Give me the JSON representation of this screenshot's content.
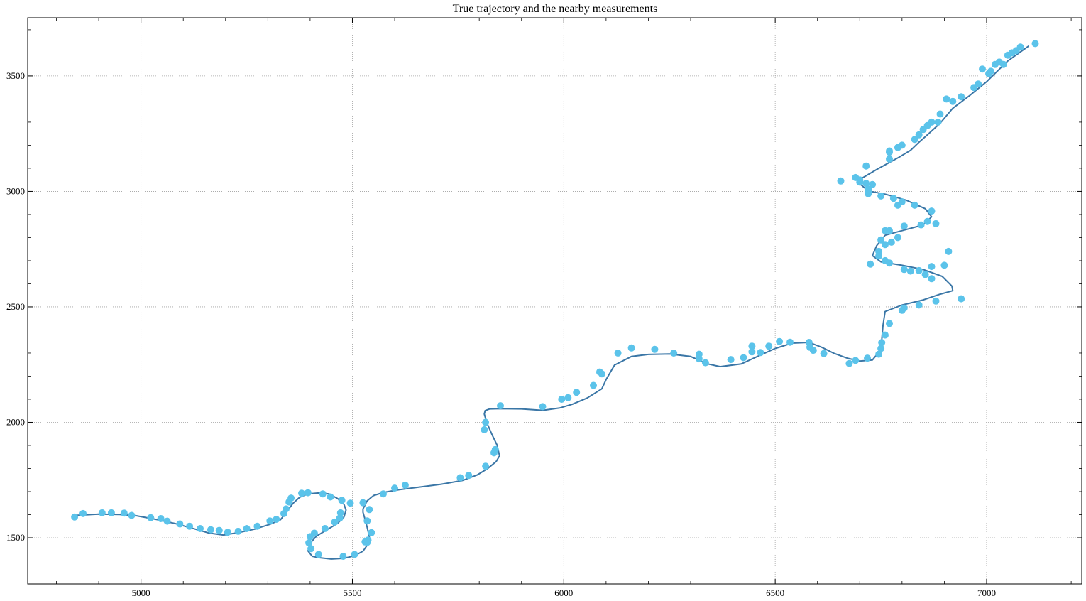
{
  "chart_data": {
    "type": "line+scatter",
    "title": "True trajectory and the nearby measurements",
    "xlabel": "",
    "ylabel": "",
    "xlim": [
      4732,
      7225
    ],
    "ylim": [
      1300,
      3752
    ],
    "xticks": [
      5000,
      5500,
      6000,
      6500,
      7000
    ],
    "yticks": [
      1500,
      2000,
      2500,
      3000,
      3500
    ],
    "grid": true,
    "colors": {
      "line": "#3a76a6",
      "points": "#5bc3ea",
      "grid": "#a0a0a0"
    },
    "series": [
      {
        "kind": "line",
        "x": [
          4843,
          4900,
          4950,
          4990,
          5040,
          5080,
          5120,
          5160,
          5195,
          5230,
          5270,
          5305,
          5330,
          5340,
          5350,
          5360,
          5375,
          5395,
          5420,
          5445,
          5465,
          5480,
          5485,
          5480,
          5465,
          5440,
          5415,
          5400,
          5395,
          5405,
          5420,
          5450,
          5480,
          5505,
          5525,
          5535,
          5540,
          5535,
          5530,
          5525,
          5525,
          5535,
          5550,
          5575,
          5610,
          5660,
          5710,
          5760,
          5795,
          5820,
          5840,
          5848,
          5842,
          5830,
          5818,
          5812,
          5814,
          5825,
          5850,
          5900,
          5950,
          5990,
          6020,
          6055,
          6090,
          6100,
          6120,
          6160,
          6200,
          6250,
          6300,
          6340,
          6370,
          6420,
          6460,
          6500,
          6540,
          6580,
          6610,
          6640,
          6670,
          6700,
          6730,
          6748,
          6752,
          6755,
          6760,
          6800,
          6850,
          6890,
          6920,
          6918,
          6895,
          6850,
          6800,
          6750,
          6730,
          6740,
          6760,
          6800,
          6850,
          6870,
          6855,
          6810,
          6760,
          6720,
          6700,
          6705,
          6740,
          6790,
          6820,
          6840,
          6860,
          6890,
          6920,
          6960,
          7000,
          7050,
          7100
        ],
        "y": [
          1597,
          1602,
          1601,
          1595,
          1578,
          1562,
          1542,
          1521,
          1512,
          1522,
          1538,
          1558,
          1578,
          1602,
          1626,
          1650,
          1675,
          1690,
          1694,
          1690,
          1670,
          1645,
          1620,
          1590,
          1562,
          1535,
          1507,
          1476,
          1443,
          1420,
          1414,
          1408,
          1411,
          1422,
          1442,
          1468,
          1505,
          1545,
          1580,
          1610,
          1625,
          1660,
          1683,
          1697,
          1708,
          1720,
          1732,
          1748,
          1772,
          1800,
          1830,
          1855,
          1902,
          1948,
          1998,
          2036,
          2051,
          2058,
          2059,
          2058,
          2052,
          2062,
          2078,
          2105,
          2145,
          2185,
          2248,
          2285,
          2294,
          2296,
          2285,
          2253,
          2241,
          2253,
          2287,
          2320,
          2343,
          2346,
          2325,
          2298,
          2278,
          2265,
          2270,
          2310,
          2355,
          2420,
          2480,
          2508,
          2530,
          2555,
          2570,
          2590,
          2632,
          2662,
          2680,
          2695,
          2722,
          2765,
          2810,
          2830,
          2855,
          2890,
          2925,
          2962,
          2988,
          3002,
          3033,
          3057,
          3095,
          3145,
          3178,
          3213,
          3245,
          3295,
          3360,
          3415,
          3475,
          3565,
          3630
        ]
      },
      {
        "kind": "scatter",
        "x": [
          4843,
          4863,
          4908,
          4930,
          4960,
          4978,
          5023,
          5047,
          5062,
          5092,
          5115,
          5140,
          5165,
          5185,
          5205,
          5230,
          5250,
          5275,
          5305,
          5320,
          5338,
          5343,
          5350,
          5355,
          5380,
          5395,
          5430,
          5448,
          5475,
          5472,
          5470,
          5458,
          5435,
          5410,
          5400,
          5397,
          5402,
          5420,
          5478,
          5505,
          5535,
          5537,
          5535,
          5540,
          5545,
          5525,
          5530,
          5495,
          5573,
          5600,
          5625,
          5755,
          5775,
          5815,
          5838,
          5835,
          5812,
          5815,
          5850,
          5950,
          5995,
          6010,
          6030,
          6070,
          6085,
          6090,
          6128,
          6160,
          6215,
          6260,
          6320,
          6320,
          6335,
          6395,
          6425,
          6445,
          6445,
          6465,
          6485,
          6510,
          6535,
          6580,
          6582,
          6590,
          6615,
          6675,
          6690,
          6718,
          6745,
          6750,
          6752,
          6760,
          6770,
          6800,
          6805,
          6840,
          6880,
          6940,
          6870,
          6855,
          6840,
          6805,
          6820,
          6870,
          6900,
          6910,
          6880,
          6860,
          6845,
          6805,
          6790,
          6750,
          6760,
          6770,
          6790,
          6775,
          6760,
          6745,
          6745,
          6760,
          6770,
          6725,
          6720,
          6750,
          6780,
          6800,
          6830,
          6870,
          6770,
          6690,
          6700,
          6715,
          6720,
          6730,
          6715,
          6655,
          6700,
          6720,
          6770,
          6770,
          6790,
          6800,
          6830,
          6840,
          6850,
          6860,
          6870,
          6885,
          6890,
          6905,
          6920,
          6940,
          6970,
          6980,
          6990,
          7005,
          7010,
          7020,
          7030,
          7040,
          7050,
          7060,
          7070,
          7080,
          7115
        ],
        "y": [
          1590,
          1605,
          1608,
          1608,
          1607,
          1597,
          1587,
          1583,
          1572,
          1560,
          1550,
          1540,
          1535,
          1532,
          1524,
          1528,
          1540,
          1550,
          1573,
          1580,
          1605,
          1625,
          1655,
          1672,
          1693,
          1695,
          1690,
          1677,
          1662,
          1608,
          1585,
          1568,
          1540,
          1520,
          1505,
          1478,
          1453,
          1428,
          1420,
          1428,
          1480,
          1490,
          1573,
          1622,
          1522,
          1652,
          1482,
          1650,
          1690,
          1715,
          1728,
          1760,
          1770,
          1810,
          1882,
          1868,
          1968,
          2000,
          2072,
          2068,
          2100,
          2107,
          2130,
          2160,
          2218,
          2210,
          2300,
          2322,
          2316,
          2300,
          2295,
          2275,
          2258,
          2272,
          2280,
          2330,
          2305,
          2302,
          2330,
          2350,
          2347,
          2346,
          2325,
          2312,
          2298,
          2255,
          2268,
          2278,
          2295,
          2320,
          2345,
          2378,
          2428,
          2485,
          2495,
          2508,
          2525,
          2535,
          2622,
          2640,
          2657,
          2662,
          2655,
          2675,
          2680,
          2740,
          2860,
          2870,
          2855,
          2850,
          2940,
          2790,
          2830,
          2830,
          2800,
          2780,
          2770,
          2740,
          2720,
          2700,
          2690,
          2685,
          2990,
          2980,
          2970,
          2955,
          2940,
          2915,
          3170,
          3060,
          3050,
          3035,
          3000,
          3030,
          3110,
          3045,
          3040,
          3010,
          3140,
          3175,
          3190,
          3200,
          3225,
          3245,
          3268,
          3285,
          3300,
          3300,
          3335,
          3400,
          3390,
          3410,
          3450,
          3465,
          3530,
          3510,
          3520,
          3550,
          3560,
          3550,
          3590,
          3600,
          3610,
          3625,
          3640
        ]
      }
    ]
  }
}
